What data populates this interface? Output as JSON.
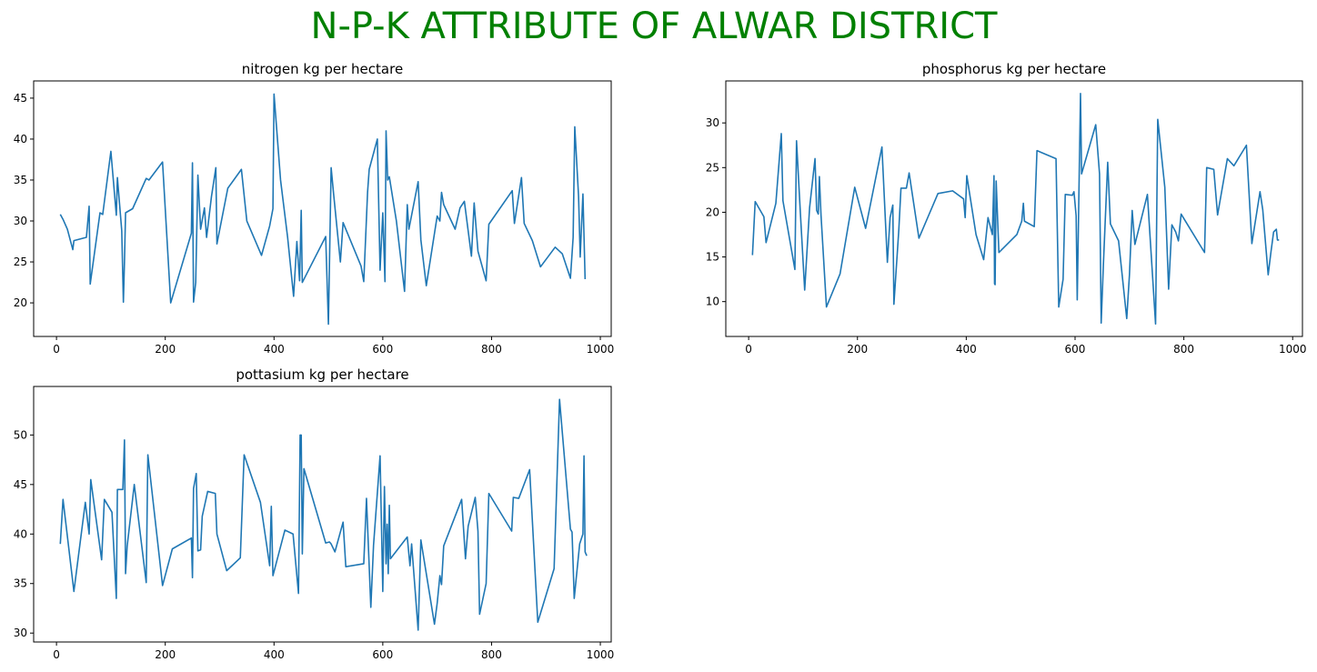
{
  "title": "N-P-K ATTRIBUTE OF ALWAR DISTRICT",
  "title_color": "#008000",
  "chart_data": [
    {
      "type": "line",
      "title": "nitrogen kg per hectare",
      "x": [
        7,
        12,
        20,
        30,
        32,
        55,
        60,
        62,
        80,
        85,
        100,
        110,
        112,
        120,
        123,
        125,
        127,
        140,
        165,
        170,
        195,
        210,
        248,
        250,
        252,
        256,
        260,
        265,
        272,
        276,
        285,
        293,
        295,
        315,
        340,
        350,
        377,
        392,
        398,
        400,
        412,
        425,
        436,
        442,
        447,
        450,
        452,
        495,
        500,
        505,
        510,
        522,
        527,
        560,
        565,
        572,
        575,
        590,
        595,
        600,
        604,
        606,
        609,
        612,
        625,
        640,
        645,
        648,
        665,
        670,
        680,
        700,
        705,
        708,
        712,
        733,
        742,
        750,
        763,
        768,
        775,
        790,
        795,
        838,
        842,
        855,
        860,
        875,
        890,
        917,
        930,
        945,
        950,
        953,
        960,
        963,
        968,
        972
      ],
      "series": [
        {
          "name": "nitrogen kg per hectare",
          "color": "#1f77b4",
          "values": [
            30.8,
            30.2,
            29,
            26.5,
            27.6,
            28,
            31.8,
            22.3,
            31,
            30.8,
            38.5,
            30.7,
            35.3,
            28.8,
            20.1,
            25,
            31,
            31.5,
            35.2,
            35,
            37.2,
            20,
            28.5,
            37.1,
            20.1,
            22.5,
            35.6,
            29,
            31.6,
            28,
            33,
            36.5,
            27.2,
            34,
            36.3,
            30,
            25.8,
            29.4,
            31.5,
            45.5,
            35,
            28,
            20.8,
            27.5,
            22.7,
            31.3,
            22.5,
            28.1,
            17.4,
            36.5,
            33,
            25,
            29.8,
            24.5,
            22.6,
            33.5,
            36.3,
            40,
            24,
            31,
            22.6,
            41,
            35,
            35.4,
            30,
            21.4,
            32,
            29,
            34.8,
            27.7,
            22.1,
            30.6,
            30,
            33.5,
            32,
            29,
            31.6,
            32.4,
            25.7,
            32.2,
            26.3,
            22.7,
            29.6,
            33.7,
            29.7,
            35.3,
            29.7,
            27.6,
            24.4,
            26.8,
            26,
            23,
            28,
            41.5,
            33,
            25.6,
            33.3,
            22.9
          ]
        }
      ],
      "xlim": [
        -42,
        1020
      ],
      "ylim": [
        15.9,
        47.1
      ],
      "xticks": [
        0,
        200,
        400,
        600,
        800,
        1000
      ],
      "yticks": [
        20,
        25,
        30,
        35,
        40,
        45
      ]
    },
    {
      "type": "line",
      "title": "phosphorus kg per hectare",
      "x": [
        7,
        12,
        28,
        32,
        50,
        60,
        63,
        85,
        88,
        95,
        103,
        112,
        122,
        125,
        128,
        130,
        133,
        143,
        168,
        195,
        215,
        245,
        255,
        260,
        265,
        267,
        276,
        280,
        290,
        295,
        313,
        348,
        375,
        395,
        398,
        401,
        418,
        432,
        440,
        448,
        451,
        452,
        453,
        455,
        460,
        493,
        502,
        505,
        507,
        525,
        530,
        565,
        570,
        578,
        582,
        595,
        598,
        602,
        604,
        610,
        612,
        638,
        645,
        648,
        652,
        660,
        665,
        680,
        695,
        700,
        705,
        710,
        733,
        748,
        750,
        752,
        765,
        772,
        778,
        785,
        790,
        795,
        838,
        842,
        855,
        862,
        880,
        892,
        915,
        925,
        940,
        945,
        955,
        960,
        965,
        970,
        972,
        975
      ],
      "series": [
        {
          "name": "phosphorus kg per hectare",
          "color": "#1f77b4",
          "values": [
            15.2,
            21.2,
            19.5,
            16.6,
            21,
            28.8,
            21.3,
            13.6,
            28,
            20,
            11.3,
            20.5,
            26,
            20.2,
            19.8,
            24,
            19.7,
            9.4,
            13.1,
            22.8,
            18.2,
            27.3,
            14.4,
            19.4,
            20.8,
            9.7,
            18,
            22.7,
            22.7,
            24.4,
            17.1,
            22.1,
            22.4,
            21.5,
            19.4,
            24.1,
            17.5,
            14.7,
            19.4,
            17.5,
            24.1,
            12,
            11.9,
            23.5,
            15.5,
            17.5,
            19,
            21,
            19,
            18.4,
            26.9,
            26,
            9.4,
            12.5,
            22,
            21.9,
            22.3,
            19.6,
            10.2,
            33.3,
            24.3,
            29.8,
            24.3,
            7.6,
            14,
            25.6,
            18.7,
            16.8,
            8.1,
            13,
            20.2,
            16.4,
            22,
            7.5,
            19,
            30.4,
            22.8,
            11.4,
            18.6,
            17.8,
            16.8,
            19.8,
            15.5,
            25,
            24.8,
            19.7,
            26,
            25.2,
            27.5,
            16.5,
            22.3,
            20.3,
            13,
            15.5,
            17.8,
            18.1,
            16.9,
            16.9
          ]
        }
      ],
      "xlim": [
        -42,
        1018
      ],
      "ylim": [
        6.1,
        34.7
      ],
      "xticks": [
        0,
        200,
        400,
        600,
        800,
        1000
      ],
      "yticks": [
        10,
        15,
        20,
        25,
        30
      ]
    },
    {
      "type": "line",
      "title": "pottasium kg per hectare",
      "x": [
        7,
        12,
        32,
        42,
        53,
        60,
        63,
        83,
        88,
        102,
        110,
        112,
        122,
        125,
        127,
        130,
        143,
        165,
        168,
        195,
        213,
        248,
        250,
        252,
        257,
        260,
        265,
        268,
        278,
        292,
        295,
        313,
        338,
        345,
        375,
        392,
        395,
        398,
        420,
        435,
        445,
        448,
        450,
        452,
        455,
        495,
        502,
        505,
        512,
        527,
        532,
        565,
        570,
        578,
        583,
        595,
        600,
        603,
        606,
        608,
        610,
        612,
        614,
        645,
        650,
        653,
        665,
        670,
        695,
        700,
        705,
        708,
        712,
        745,
        752,
        757,
        770,
        775,
        778,
        790,
        795,
        837,
        840,
        850,
        870,
        885,
        915,
        925,
        945,
        948,
        952,
        962,
        968,
        970,
        972,
        975
      ],
      "series": [
        {
          "name": "pottasium kg per hectare",
          "color": "#1f77b4",
          "values": [
            39,
            43.5,
            34.2,
            38.5,
            43.2,
            40,
            45.5,
            37.4,
            43.5,
            42.2,
            33.5,
            44.5,
            44.5,
            49.5,
            36,
            38.8,
            45,
            35.1,
            48,
            34.8,
            38.5,
            39.6,
            35.6,
            44.6,
            46.1,
            38.3,
            38.4,
            41.8,
            44.3,
            44.1,
            40,
            36.3,
            37.6,
            48,
            43.2,
            36.8,
            42.8,
            35.8,
            40.4,
            40,
            34,
            50,
            50,
            38,
            46.6,
            39.1,
            39.2,
            39,
            38.2,
            41.2,
            36.7,
            37,
            43.6,
            32.6,
            38.9,
            47.9,
            34.2,
            44.8,
            37,
            41,
            36,
            42.9,
            37.5,
            39.7,
            36.8,
            39,
            30.3,
            39.4,
            30.9,
            33,
            35.8,
            34.9,
            38.8,
            43.5,
            37.5,
            40.8,
            43.7,
            40.3,
            31.9,
            35,
            44.1,
            40.3,
            43.7,
            43.6,
            46.5,
            31.1,
            36.5,
            53.6,
            40.5,
            40.2,
            33.5,
            39,
            40,
            47.9,
            38.2,
            37.8
          ]
        }
      ],
      "xlim": [
        -42,
        1020
      ],
      "ylim": [
        29.1,
        54.9
      ],
      "xticks": [
        0,
        200,
        400,
        600,
        800,
        1000
      ],
      "yticks": [
        30,
        35,
        40,
        45,
        50
      ]
    }
  ]
}
